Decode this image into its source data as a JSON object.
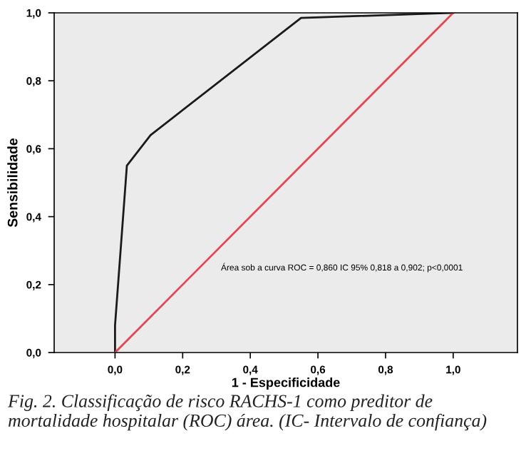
{
  "chart_data": {
    "type": "line",
    "xlabel": "1 - Especificidade",
    "ylabel": "Sensibilidade",
    "series": [
      {
        "x": [
          0.0,
          0.0,
          0.035,
          0.105,
          0.55,
          1.0
        ],
        "values": [
          0.0,
          0.08,
          0.55,
          0.64,
          0.985,
          1.0
        ],
        "color": "#1a1a1a"
      },
      {
        "x": [
          0.0,
          1.0
        ],
        "values": [
          0.0,
          1.0
        ],
        "color": "#e8434f"
      }
    ],
    "xlim": [
      -0.18,
      1.19
    ],
    "ylim": [
      0.0,
      1.0
    ],
    "xticks": [
      {
        "value": 0.0,
        "label": "0,0"
      },
      {
        "value": 0.2,
        "label": "0,2"
      },
      {
        "value": 0.4,
        "label": "0,4"
      },
      {
        "value": 0.6,
        "label": "0,6"
      },
      {
        "value": 0.8,
        "label": "0,8"
      },
      {
        "value": 1.0,
        "label": "1,0"
      }
    ],
    "yticks": [
      {
        "value": 0.0,
        "label": "0,0"
      },
      {
        "value": 0.2,
        "label": "0,2"
      },
      {
        "value": 0.4,
        "label": "0,4"
      },
      {
        "value": 0.6,
        "label": "0,6"
      },
      {
        "value": 0.8,
        "label": "0,8"
      },
      {
        "value": 1.0,
        "label": "1,0"
      }
    ],
    "grid": false,
    "marker": "none",
    "line_style": "solid",
    "annotations": [
      "Área sob a curva ROC = 0,860 IC 95% 0,818 a 0,902; p<0,0001",
      "Fig. 2. Classificação de risco RACHS-1 como preditor de mortalidade hospitalar (ROC) área. (IC- Intervalo de confiança)"
    ]
  }
}
